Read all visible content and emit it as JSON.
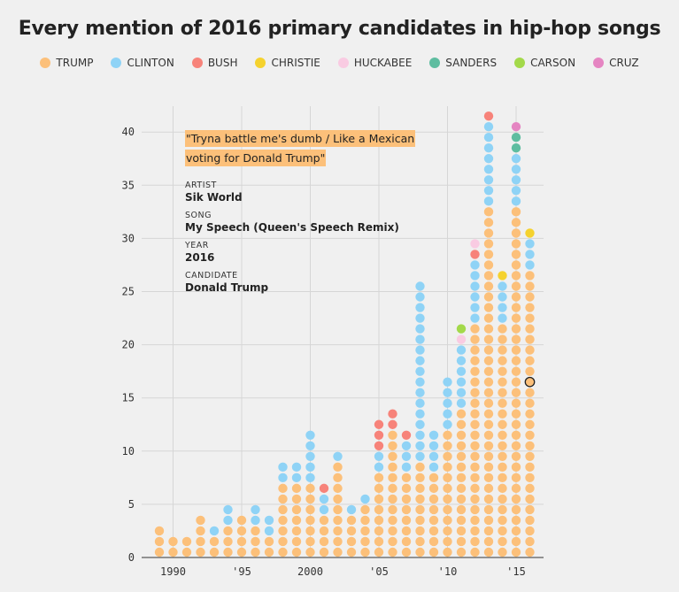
{
  "title": "Every mention of 2016 primary candidates in hip-hop songs",
  "legend": [
    {
      "label": "TRUMP",
      "color": "#fcc07a"
    },
    {
      "label": "CLINTON",
      "color": "#8fd3f6"
    },
    {
      "label": "BUSH",
      "color": "#f7837a"
    },
    {
      "label": "CHRISTIE",
      "color": "#f5d22e"
    },
    {
      "label": "HUCKABEE",
      "color": "#f9cbe2"
    },
    {
      "label": "SANDERS",
      "color": "#5ebda0"
    },
    {
      "label": "CARSON",
      "color": "#a3d94a"
    },
    {
      "label": "CRUZ",
      "color": "#e585c2"
    }
  ],
  "tooltip": {
    "quote": "\"Tryna battle me's dumb / Like a Mexican voting for Donald Trump\"",
    "artist_label": "ARTIST",
    "artist": "Sik World",
    "song_label": "SONG",
    "song": "My Speech (Queen's Speech Remix)",
    "year_label": "YEAR",
    "year": "2016",
    "candidate_label": "CANDIDATE",
    "candidate": "Donald Trump"
  },
  "chart_data": {
    "type": "scatter",
    "title": "Every mention of 2016 primary candidates in hip-hop songs",
    "xlabel": "",
    "ylabel": "",
    "x_range": [
      1989,
      2016
    ],
    "ylim": [
      0,
      43
    ],
    "y_ticks": [
      0,
      5,
      10,
      15,
      20,
      25,
      30,
      35,
      40
    ],
    "x_ticks": [
      {
        "year": 1990,
        "label": "1990"
      },
      {
        "year": 1995,
        "label": "'95"
      },
      {
        "year": 2000,
        "label": "2000"
      },
      {
        "year": 2005,
        "label": "'05"
      },
      {
        "year": 2010,
        "label": "'10"
      },
      {
        "year": 2015,
        "label": "'15"
      }
    ],
    "grid": true,
    "series_order": [
      "TRUMP",
      "CLINTON",
      "BUSH",
      "CHRISTIE",
      "HUCKABEE",
      "SANDERS",
      "CARSON",
      "CRUZ"
    ],
    "highlighted": {
      "year": 2016,
      "index": 16,
      "candidate": "TRUMP"
    },
    "years": [
      {
        "year": 1989,
        "counts": {
          "TRUMP": 3
        }
      },
      {
        "year": 1990,
        "counts": {
          "TRUMP": 2
        }
      },
      {
        "year": 1991,
        "counts": {
          "TRUMP": 2
        }
      },
      {
        "year": 1992,
        "counts": {
          "TRUMP": 4
        }
      },
      {
        "year": 1993,
        "counts": {
          "TRUMP": 2,
          "CLINTON": 1
        }
      },
      {
        "year": 1994,
        "counts": {
          "TRUMP": 3,
          "CLINTON": 2
        }
      },
      {
        "year": 1995,
        "counts": {
          "TRUMP": 4
        }
      },
      {
        "year": 1996,
        "counts": {
          "TRUMP": 3,
          "CLINTON": 2
        }
      },
      {
        "year": 1997,
        "counts": {
          "TRUMP": 2,
          "CLINTON": 2
        }
      },
      {
        "year": 1998,
        "counts": {
          "TRUMP": 7,
          "CLINTON": 2
        }
      },
      {
        "year": 1999,
        "counts": {
          "TRUMP": 7,
          "CLINTON": 2
        }
      },
      {
        "year": 2000,
        "counts": {
          "TRUMP": 7,
          "CLINTON": 5
        }
      },
      {
        "year": 2001,
        "counts": {
          "TRUMP": 4,
          "CLINTON": 2,
          "BUSH": 1
        }
      },
      {
        "year": 2002,
        "counts": {
          "TRUMP": 9,
          "CLINTON": 1
        }
      },
      {
        "year": 2003,
        "counts": {
          "TRUMP": 4,
          "CLINTON": 1
        }
      },
      {
        "year": 2004,
        "counts": {
          "TRUMP": 5,
          "CLINTON": 1
        }
      },
      {
        "year": 2005,
        "counts": {
          "TRUMP": 8,
          "CLINTON": 2,
          "BUSH": 3
        }
      },
      {
        "year": 2006,
        "counts": {
          "TRUMP": 12,
          "BUSH": 2
        }
      },
      {
        "year": 2007,
        "counts": {
          "TRUMP": 8,
          "CLINTON": 3,
          "BUSH": 1
        }
      },
      {
        "year": 2008,
        "counts": {
          "TRUMP": 9,
          "CLINTON": 17
        }
      },
      {
        "year": 2009,
        "counts": {
          "TRUMP": 8,
          "CLINTON": 4
        }
      },
      {
        "year": 2010,
        "counts": {
          "TRUMP": 12,
          "CLINTON": 5
        }
      },
      {
        "year": 2011,
        "counts": {
          "TRUMP": 14,
          "CLINTON": 6,
          "CARSON": 1,
          "HUCKABEE": 1
        }
      },
      {
        "year": 2012,
        "counts": {
          "TRUMP": 22,
          "CLINTON": 6,
          "BUSH": 1,
          "HUCKABEE": 1
        }
      },
      {
        "year": 2013,
        "counts": {
          "TRUMP": 33,
          "CLINTON": 8,
          "BUSH": 1
        }
      },
      {
        "year": 2014,
        "counts": {
          "TRUMP": 22,
          "CLINTON": 4,
          "CHRISTIE": 1
        }
      },
      {
        "year": 2015,
        "counts": {
          "TRUMP": 33,
          "CLINTON": 5,
          "SANDERS": 2,
          "CRUZ": 1
        }
      },
      {
        "year": 2016,
        "counts": {
          "TRUMP": 27,
          "CLINTON": 3,
          "CHRISTIE": 1
        }
      }
    ]
  }
}
